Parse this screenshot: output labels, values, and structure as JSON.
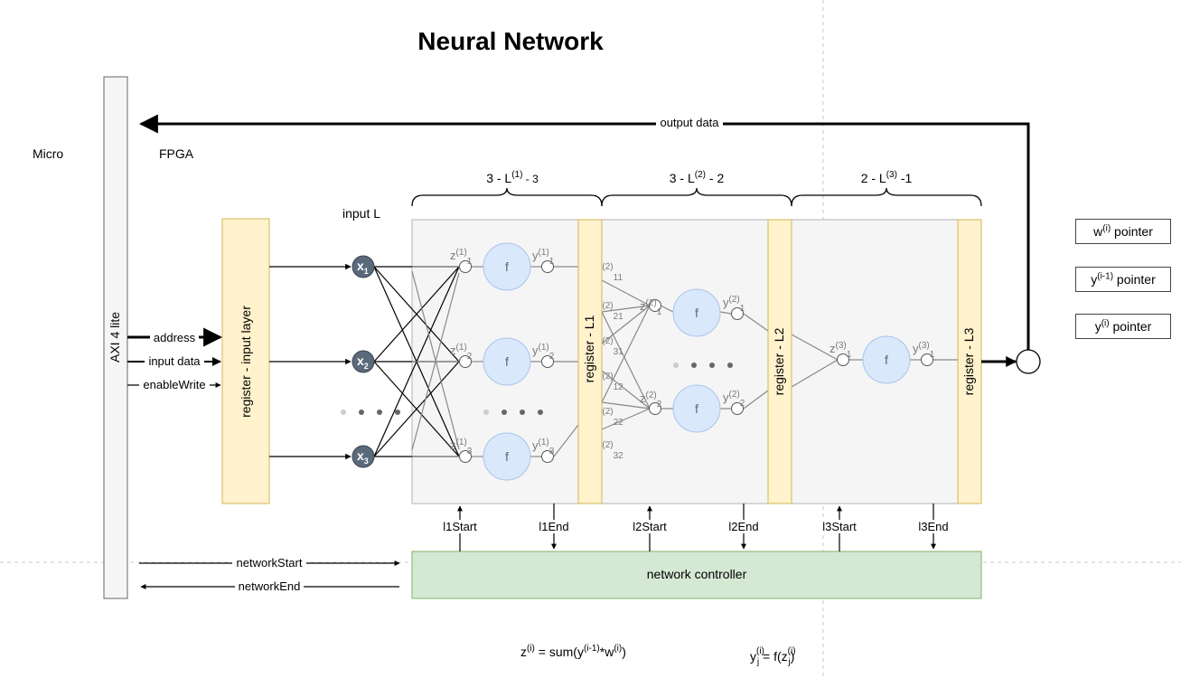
{
  "title": "Neural Network",
  "regions": {
    "micro": "Micro",
    "fpga": "FPGA"
  },
  "axi": {
    "label": "AXI 4 lite"
  },
  "signals": {
    "output_data": "output data",
    "address": "address",
    "input_data": "input data",
    "enable_write": "enableWrite",
    "network_start": "networkStart",
    "network_end": "networkEnd"
  },
  "input_layer": {
    "label": "input L",
    "register": "register - input layer"
  },
  "layers": [
    {
      "label_pre": "3 - L",
      "label_sup": "(1)",
      "label_post": " - 3",
      "register": "register - L1",
      "start": "l1Start",
      "end": "l1End"
    },
    {
      "label_pre": "3 - L",
      "label_sup": "(2)",
      "label_post": " - 2",
      "register": "register - L2",
      "start": "l2Start",
      "end": "l2End"
    },
    {
      "label_pre": "2 - L",
      "label_sup": "(3)",
      "label_post": " -1",
      "register": "register - L3",
      "start": "l3Start",
      "end": "l3End"
    }
  ],
  "inputs": [
    {
      "base": "x",
      "sub": "1"
    },
    {
      "base": "x",
      "sub": "2"
    },
    {
      "base": "x",
      "sub": "3"
    }
  ],
  "activation": "f",
  "layer1_neurons": [
    {
      "z_sup": "(1)",
      "z_sub": "1",
      "y_sup": "(1)",
      "y_sub": "1"
    },
    {
      "z_sup": "(1)",
      "z_sub": "2",
      "y_sup": "(1)",
      "y_sub": "2"
    },
    {
      "z_sup": "(1)",
      "z_sub": "3",
      "y_sup": "(1)",
      "y_sub": "3"
    }
  ],
  "layer2_neurons": [
    {
      "z_sup": "(2)",
      "z_sub": "1",
      "y_sup": "(2)",
      "y_sub": "1"
    },
    {
      "z_sup": "(2)",
      "z_sub": "2",
      "y_sup": "(2)",
      "y_sub": "2"
    }
  ],
  "layer3_neurons": [
    {
      "z_sup": "(3)",
      "z_sub": "1",
      "y_sup": "(3)",
      "y_sub": "1"
    }
  ],
  "weights": [
    {
      "sup": "(2)",
      "sub": "11"
    },
    {
      "sup": "(2)",
      "sub": "21"
    },
    {
      "sup": "(2)",
      "sub": "31"
    },
    {
      "sup": "(2)",
      "sub": "12"
    },
    {
      "sup": "(2)",
      "sub": "22"
    },
    {
      "sup": "(2)",
      "sub": "32"
    }
  ],
  "controller": {
    "label": "network controller"
  },
  "pointers": [
    {
      "pre": "w",
      "sup": "(i)",
      "post": " pointer"
    },
    {
      "pre": "y",
      "sup": "(i-1)",
      "post": " pointer"
    },
    {
      "pre": "y",
      "sup": "(i)",
      "post": " pointer"
    }
  ],
  "formulas": {
    "z": {
      "a": "z",
      "a_sup": "(i)",
      "b": " = sum(y",
      "b_sup": "(i-1)",
      "c": "*w",
      "c_sup": "(i)",
      "d": ")"
    },
    "y": {
      "a": "y",
      "a_sup": "(i)",
      "a_sub": "j",
      "b": " = f(z",
      "b_sup": "(i)",
      "b_sub": "j",
      "c": ")"
    }
  },
  "colors": {
    "register_fill": "#fff2cc",
    "register_stroke": "#d6b656",
    "controller_fill": "#d5e8d4",
    "controller_stroke": "#82b366",
    "layer_fill": "#f5f5f5",
    "layer_stroke": "#b3b3b3",
    "neuron_fill": "#dae8fc",
    "neuron_stroke": "#a9c4eb",
    "input_node_fill": "#5b6a7a",
    "axi_fill": "#f5f5f5"
  }
}
